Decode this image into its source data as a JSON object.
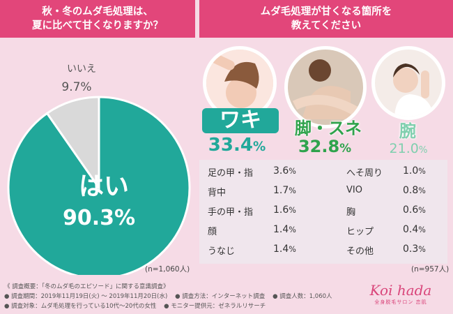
{
  "left_panel": {
    "title_line1": "秋・冬のムダ毛処理は、",
    "title_line2": "夏に比べて甘くなりますか？",
    "sample": "(n=1,060人)"
  },
  "right_panel": {
    "title_line1": "ムダ毛処理が甘くなる箇所を",
    "title_line2": "教えてください",
    "sample": "(n=957人)",
    "top3": [
      {
        "label": "ワキ",
        "value": "33.4",
        "unit": "%",
        "color": "#21a89a"
      },
      {
        "label": "脚・スネ",
        "value": "32.8",
        "unit": "%",
        "color": "#2fa34c"
      },
      {
        "label": "腕",
        "value": "21.0",
        "unit": "%",
        "color": "#7fcfae"
      }
    ],
    "others_left": [
      {
        "label": "足の甲・指",
        "value": "3.6",
        "unit": "%"
      },
      {
        "label": "背中",
        "value": "1.7",
        "unit": "%"
      },
      {
        "label": "手の甲・指",
        "value": "1.6",
        "unit": "%"
      },
      {
        "label": "顔",
        "value": "1.4",
        "unit": "%"
      },
      {
        "label": "うなじ",
        "value": "1.4",
        "unit": "%"
      }
    ],
    "others_right": [
      {
        "label": "へそ周り",
        "value": "1.0",
        "unit": "%"
      },
      {
        "label": "VIO",
        "value": "0.8",
        "unit": "%"
      },
      {
        "label": "胸",
        "value": "0.6",
        "unit": "%"
      },
      {
        "label": "ヒップ",
        "value": "0.4",
        "unit": "%"
      },
      {
        "label": "その他",
        "value": "0.3",
        "unit": "%"
      }
    ]
  },
  "footer": {
    "line1": "《 調査概要：「冬のムダ毛のエピソード」に関する意識調査》",
    "line2a": "● 調査期間：2019年11月19日(火) 〜 2019年11月20日(水)",
    "line2b": "● 調査方法：インターネット調査",
    "line2c": "● 調査人数：1,060人",
    "line3a": "● 調査対象：ムダ毛処理を行っている10代〜20代の女性",
    "line3b": "● モニター提供元：ゼネラルリサーチ",
    "logo_text": "Koi hada",
    "logo_sub": "全身脱毛サロン 恋肌"
  },
  "colors": {
    "header": "#e2467a",
    "pie_yes": "#21a89a",
    "pie_no": "#d9d9d9",
    "background": "#f6dbe6"
  },
  "chart_data": [
    {
      "type": "pie",
      "categories": [
        "はい",
        "いいえ"
      ],
      "values": [
        90.3,
        9.7
      ],
      "unit": "%",
      "title": "秋・冬のムダ毛処理は、夏に比べて甘くなりますか？"
    },
    {
      "type": "table",
      "title": "ムダ毛処理が甘くなる箇所を教えてください",
      "categories": [
        "ワキ",
        "脚・スネ",
        "腕",
        "足の甲・指",
        "背中",
        "手の甲・指",
        "顔",
        "うなじ",
        "へそ周り",
        "VIO",
        "胸",
        "ヒップ",
        "その他"
      ],
      "values": [
        33.4,
        32.8,
        21.0,
        3.6,
        1.7,
        1.6,
        1.4,
        1.4,
        1.0,
        0.8,
        0.6,
        0.4,
        0.3
      ],
      "unit": "%"
    }
  ]
}
